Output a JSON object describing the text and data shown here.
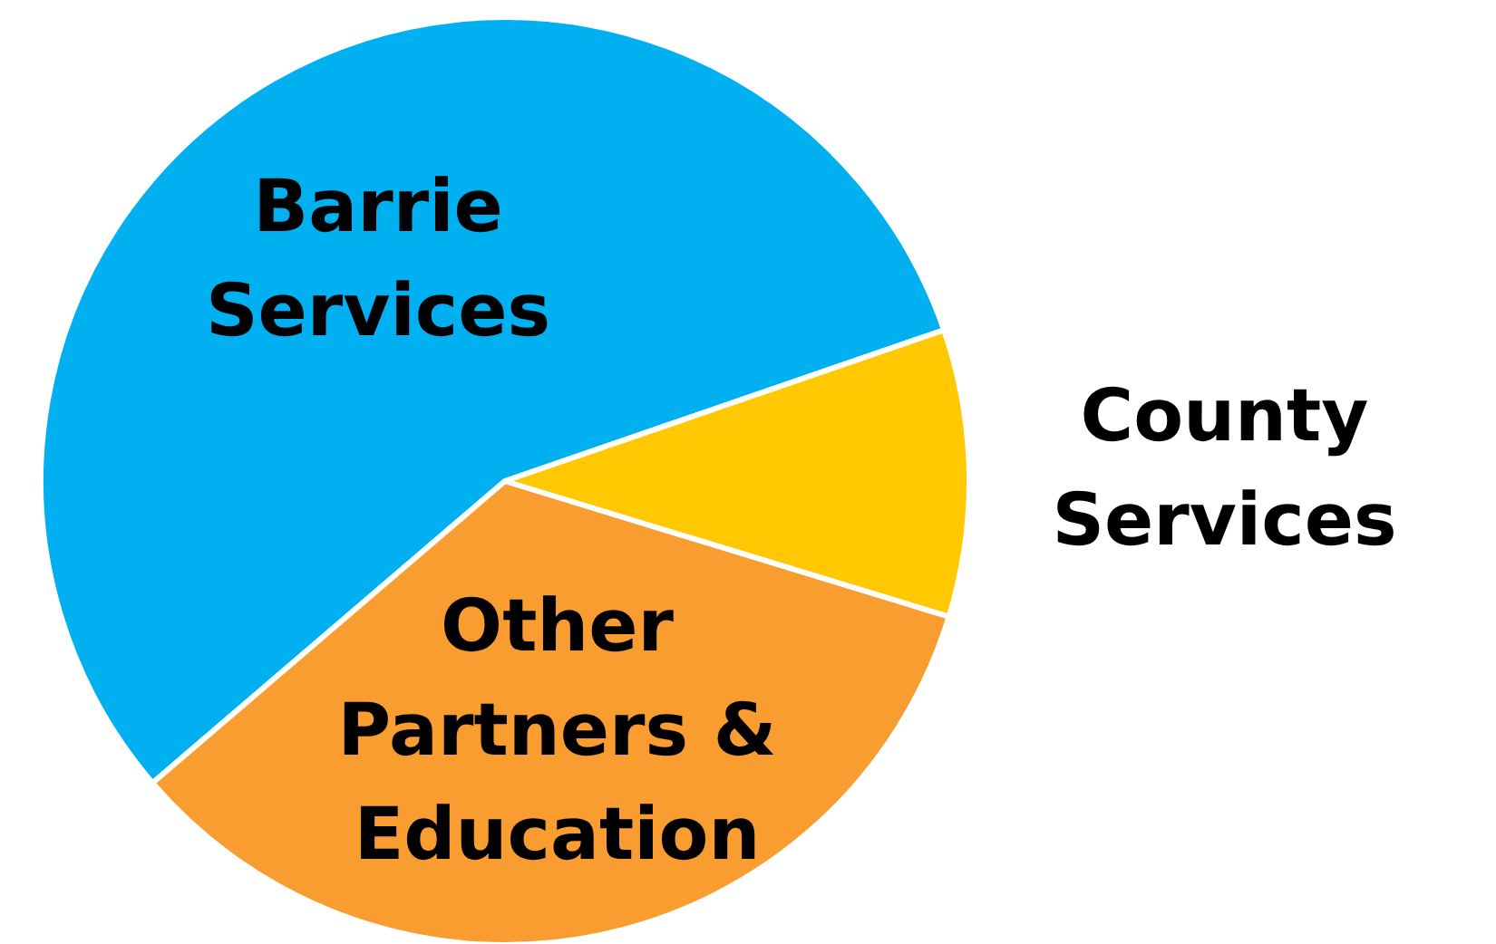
{
  "chart_data": {
    "type": "pie",
    "categories": [
      "Barrie Services",
      "Other Partners & Education",
      "County Services"
    ],
    "values": [
      56,
      34,
      10
    ],
    "colors": [
      "#00b0f0",
      "#f99d31",
      "#ffc800"
    ]
  }
}
